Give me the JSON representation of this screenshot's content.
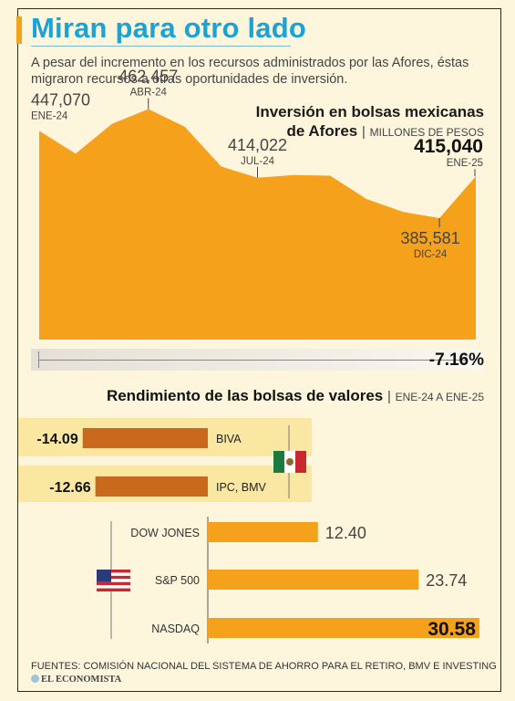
{
  "header": {
    "title": "Miran para otro lado",
    "subtitle": "A pesar del incremento en los recursos administrados por las Afores, éstas migraron recursos a otras oportunidades de inversión."
  },
  "chart_data": [
    {
      "type": "area",
      "title_line1": "Inversión en bolsas mexicanas",
      "title_line2": "de Afores",
      "unit": "MILLONES DE PESOS",
      "ylim": [
        300000,
        475000
      ],
      "color": "#f5a11c",
      "values": [
        447070,
        431000,
        452000,
        462457,
        450000,
        422000,
        414022,
        416000,
        415500,
        399000,
        390000,
        385581,
        415040
      ],
      "annotations": [
        {
          "index": 0,
          "value": "447,070",
          "label": "ENE-24"
        },
        {
          "index": 3,
          "value": "462,457",
          "label": "ABR-24"
        },
        {
          "index": 6,
          "value": "414,022",
          "label": "JUL-24"
        },
        {
          "index": 11,
          "value": "385,581",
          "label": "DIC-24"
        },
        {
          "index": 12,
          "value": "415,040",
          "label": "ENE-25"
        }
      ],
      "change_label": "-7.16%"
    },
    {
      "type": "bar",
      "title": "Rendimiento de las bolsas de valores",
      "period": "ENE-24 A ENE-25",
      "xlim": [
        -15,
        32
      ],
      "positive_color": "#f5a11c",
      "negative_color": "#c8691e",
      "series": [
        {
          "name": "BIVA",
          "value": -14.09,
          "label": "-14.09",
          "group": "mx"
        },
        {
          "name": "IPC, BMV",
          "value": -12.66,
          "label": "-12.66",
          "group": "mx"
        },
        {
          "name": "DOW JONES",
          "value": 12.4,
          "label": "12.40",
          "group": "us"
        },
        {
          "name": "S&P 500",
          "value": 23.74,
          "label": "23.74",
          "group": "us"
        },
        {
          "name": "NASDAQ",
          "value": 30.58,
          "label": "30.58",
          "group": "us"
        }
      ]
    }
  ],
  "footer": {
    "sources": "FUENTES: COMISIÓN NACIONAL DEL SISTEMA DE AHORRO PARA EL RETIRO, BMV E INVESTING",
    "brand": "EL ECONOMISTA"
  },
  "icons": [
    "mexico-flag-icon",
    "usa-flag-icon"
  ]
}
